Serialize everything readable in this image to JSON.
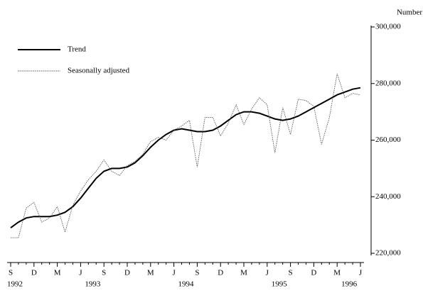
{
  "chart_data": {
    "type": "line",
    "y_axis_title": "Number",
    "categories": [
      "S",
      null,
      null,
      "D",
      null,
      null,
      "M",
      null,
      null,
      "J",
      null,
      null,
      "S",
      null,
      null,
      "D",
      null,
      null,
      "M",
      null,
      null,
      "J",
      null,
      null,
      "S",
      null,
      null,
      "D",
      null,
      null,
      "M",
      null,
      null,
      "J",
      null,
      null,
      "S",
      null,
      null,
      "D",
      null,
      null,
      "M",
      null,
      null,
      "J"
    ],
    "year_labels": [
      "1992",
      null,
      null,
      null,
      null,
      null,
      null,
      null,
      null,
      null,
      "1993",
      null,
      null,
      null,
      null,
      null,
      null,
      null,
      null,
      null,
      null,
      null,
      "1994",
      null,
      null,
      null,
      null,
      null,
      null,
      null,
      null,
      null,
      null,
      null,
      "1995",
      null,
      null,
      null,
      null,
      null,
      null,
      null,
      null,
      "1996",
      null,
      null
    ],
    "series": [
      {
        "name": "Trend",
        "color": "#000000",
        "style": "solid",
        "values": [
          229000,
          231000,
          232500,
          233000,
          233000,
          233000,
          233500,
          234500,
          236500,
          239500,
          243000,
          246500,
          249000,
          250000,
          250000,
          250500,
          252000,
          254500,
          257500,
          260000,
          262000,
          263500,
          264000,
          263500,
          263000,
          263000,
          263500,
          265000,
          267000,
          269000,
          270000,
          270000,
          269500,
          268500,
          267500,
          267000,
          267500,
          268500,
          270000,
          271500,
          273000,
          274500,
          276000,
          277000,
          278000,
          278500
        ]
      },
      {
        "name": "Seasonally adjusted",
        "color": "#555555",
        "style": "dotted",
        "values": [
          225500,
          225500,
          236000,
          238000,
          231000,
          232500,
          236500,
          227500,
          237000,
          242000,
          246000,
          249000,
          253000,
          249000,
          247500,
          251000,
          252500,
          255000,
          259500,
          261000,
          260000,
          263500,
          265000,
          267000,
          250500,
          268000,
          268000,
          261500,
          266000,
          272500,
          265500,
          271000,
          275000,
          272500,
          255500,
          271500,
          262000,
          274500,
          274000,
          272000,
          258500,
          268000,
          283500,
          275000,
          276500,
          276000
        ]
      }
    ],
    "ylim": [
      220000,
      300000
    ],
    "yticks": [
      {
        "value": 220000,
        "label": "220,000"
      },
      {
        "value": 240000,
        "label": "240,000"
      },
      {
        "value": 260000,
        "label": "260,000"
      },
      {
        "value": 280000,
        "label": "280,000"
      },
      {
        "value": 300000,
        "label": "300,000"
      }
    ],
    "legend": "top-left",
    "grid": false
  }
}
